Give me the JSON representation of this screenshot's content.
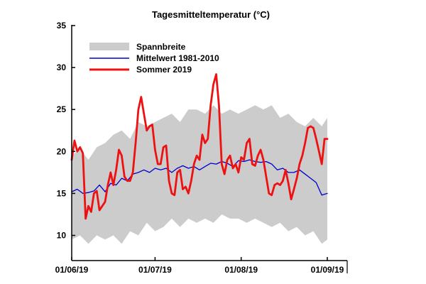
{
  "chart_data": {
    "type": "line",
    "title": "Tagesmitteltemperatur (°C)",
    "xlabel": "",
    "ylabel": "",
    "ylim": [
      7,
      35
    ],
    "yticks": [
      10,
      15,
      20,
      25,
      30,
      35
    ],
    "xlim": [
      "2019-06-01",
      "2019-09-01"
    ],
    "xticks": [
      "2019-06-01",
      "2019-07-01",
      "2019-08-01",
      "2019-09-01"
    ],
    "xtick_labels": [
      "01/06/19",
      "01/07/19",
      "01/08/19",
      "01/09/19"
    ],
    "grid": false,
    "legend_position": "top-left",
    "colors": {
      "range": "#cccccc",
      "mean": "#0000cc",
      "summer": "#ee1111"
    },
    "range_band": {
      "name": "Spannbreite",
      "x": [
        "2019-06-01",
        "2019-06-04",
        "2019-06-07",
        "2019-06-10",
        "2019-06-13",
        "2019-06-16",
        "2019-06-19",
        "2019-06-22",
        "2019-06-25",
        "2019-06-28",
        "2019-07-01",
        "2019-07-04",
        "2019-07-07",
        "2019-07-10",
        "2019-07-13",
        "2019-07-16",
        "2019-07-19",
        "2019-07-22",
        "2019-07-25",
        "2019-07-28",
        "2019-07-31",
        "2019-08-03",
        "2019-08-06",
        "2019-08-09",
        "2019-08-12",
        "2019-08-15",
        "2019-08-18",
        "2019-08-21",
        "2019-08-24",
        "2019-08-27",
        "2019-08-30",
        "2019-09-01"
      ],
      "upper": [
        19.5,
        20.3,
        19.0,
        20.5,
        21.0,
        22.0,
        22.5,
        21.5,
        23.5,
        23.0,
        23.5,
        24.0,
        24.5,
        23.5,
        25.0,
        25.0,
        24.5,
        25.5,
        24.5,
        25.0,
        24.5,
        25.0,
        25.5,
        25.0,
        25.5,
        24.0,
        24.5,
        23.5,
        23.0,
        24.0,
        23.0,
        24.0
      ],
      "lower": [
        9.5,
        10.0,
        9.0,
        10.0,
        9.5,
        10.0,
        9.0,
        10.5,
        10.0,
        11.5,
        10.5,
        11.0,
        12.0,
        11.0,
        12.0,
        11.5,
        12.0,
        11.5,
        12.5,
        12.0,
        12.0,
        11.5,
        12.0,
        11.5,
        11.0,
        11.5,
        10.5,
        11.0,
        10.0,
        10.5,
        9.0,
        9.5
      ]
    },
    "series": [
      {
        "name": "Mittelwert 1981-2010",
        "x": [
          "2019-06-01",
          "2019-06-03",
          "2019-06-05",
          "2019-06-07",
          "2019-06-09",
          "2019-06-11",
          "2019-06-13",
          "2019-06-15",
          "2019-06-17",
          "2019-06-19",
          "2019-06-21",
          "2019-06-23",
          "2019-06-25",
          "2019-06-27",
          "2019-06-29",
          "2019-07-01",
          "2019-07-03",
          "2019-07-05",
          "2019-07-07",
          "2019-07-09",
          "2019-07-11",
          "2019-07-13",
          "2019-07-15",
          "2019-07-17",
          "2019-07-19",
          "2019-07-21",
          "2019-07-23",
          "2019-07-25",
          "2019-07-27",
          "2019-07-29",
          "2019-07-31",
          "2019-08-02",
          "2019-08-04",
          "2019-08-06",
          "2019-08-08",
          "2019-08-10",
          "2019-08-12",
          "2019-08-14",
          "2019-08-16",
          "2019-08-18",
          "2019-08-20",
          "2019-08-22",
          "2019-08-24",
          "2019-08-26",
          "2019-08-28",
          "2019-08-30",
          "2019-09-01"
        ],
        "values": [
          15.2,
          15.5,
          15.0,
          15.1,
          15.3,
          16.0,
          15.2,
          16.2,
          16.0,
          16.8,
          16.5,
          17.3,
          17.5,
          17.8,
          17.5,
          18.0,
          17.8,
          18.0,
          17.5,
          18.0,
          18.3,
          18.0,
          18.2,
          17.8,
          18.2,
          18.6,
          18.5,
          18.8,
          18.6,
          18.2,
          18.9,
          18.8,
          19.0,
          18.8,
          18.7,
          18.8,
          18.5,
          17.8,
          18.0,
          17.5,
          17.5,
          17.8,
          17.3,
          16.8,
          16.3,
          14.8,
          15.0
        ]
      },
      {
        "name": "Sommer 2019",
        "x": [
          "2019-06-01",
          "2019-06-02",
          "2019-06-03",
          "2019-06-04",
          "2019-06-05",
          "2019-06-06",
          "2019-06-07",
          "2019-06-08",
          "2019-06-09",
          "2019-06-10",
          "2019-06-11",
          "2019-06-12",
          "2019-06-13",
          "2019-06-14",
          "2019-06-15",
          "2019-06-16",
          "2019-06-17",
          "2019-06-18",
          "2019-06-19",
          "2019-06-20",
          "2019-06-21",
          "2019-06-22",
          "2019-06-23",
          "2019-06-24",
          "2019-06-25",
          "2019-06-26",
          "2019-06-27",
          "2019-06-28",
          "2019-06-29",
          "2019-06-30",
          "2019-07-01",
          "2019-07-02",
          "2019-07-03",
          "2019-07-04",
          "2019-07-05",
          "2019-07-06",
          "2019-07-07",
          "2019-07-08",
          "2019-07-09",
          "2019-07-10",
          "2019-07-11",
          "2019-07-12",
          "2019-07-13",
          "2019-07-14",
          "2019-07-15",
          "2019-07-16",
          "2019-07-17",
          "2019-07-18",
          "2019-07-19",
          "2019-07-20",
          "2019-07-21",
          "2019-07-22",
          "2019-07-23",
          "2019-07-24",
          "2019-07-25",
          "2019-07-26",
          "2019-07-27",
          "2019-07-28",
          "2019-07-29",
          "2019-07-30",
          "2019-07-31",
          "2019-08-01",
          "2019-08-02",
          "2019-08-03",
          "2019-08-04",
          "2019-08-05",
          "2019-08-06",
          "2019-08-07",
          "2019-08-08",
          "2019-08-09",
          "2019-08-10",
          "2019-08-11",
          "2019-08-12",
          "2019-08-13",
          "2019-08-14",
          "2019-08-15",
          "2019-08-16",
          "2019-08-17",
          "2019-08-18",
          "2019-08-19",
          "2019-08-20",
          "2019-08-21",
          "2019-08-22",
          "2019-08-23",
          "2019-08-24",
          "2019-08-25",
          "2019-08-26",
          "2019-08-27",
          "2019-08-28",
          "2019-08-29",
          "2019-08-30",
          "2019-08-31",
          "2019-09-01"
        ],
        "values": [
          19.0,
          21.3,
          20.0,
          20.5,
          19.8,
          12.0,
          13.5,
          12.8,
          15.0,
          15.3,
          13.0,
          13.5,
          14.0,
          16.0,
          17.5,
          16.0,
          17.8,
          20.2,
          19.5,
          17.0,
          16.5,
          16.5,
          17.5,
          21.0,
          25.0,
          26.5,
          24.5,
          22.5,
          23.0,
          23.2,
          20.2,
          18.5,
          18.5,
          20.5,
          20.7,
          16.5,
          15.0,
          14.8,
          17.5,
          17.8,
          15.5,
          15.8,
          15.0,
          16.5,
          18.5,
          19.5,
          19.0,
          22.0,
          21.0,
          21.5,
          25.5,
          28.0,
          29.2,
          25.5,
          18.5,
          17.3,
          19.0,
          19.5,
          18.0,
          18.5,
          17.5,
          19.3,
          19.0,
          21.0,
          21.5,
          18.5,
          18.3,
          19.5,
          20.2,
          19.0,
          17.0,
          15.0,
          14.8,
          16.0,
          16.2,
          16.0,
          16.5,
          17.8,
          16.2,
          14.3,
          15.5,
          16.8,
          18.5,
          19.5,
          21.0,
          22.8,
          23.0,
          22.8,
          21.5,
          20.0,
          18.5,
          21.5,
          21.5
        ]
      }
    ]
  }
}
